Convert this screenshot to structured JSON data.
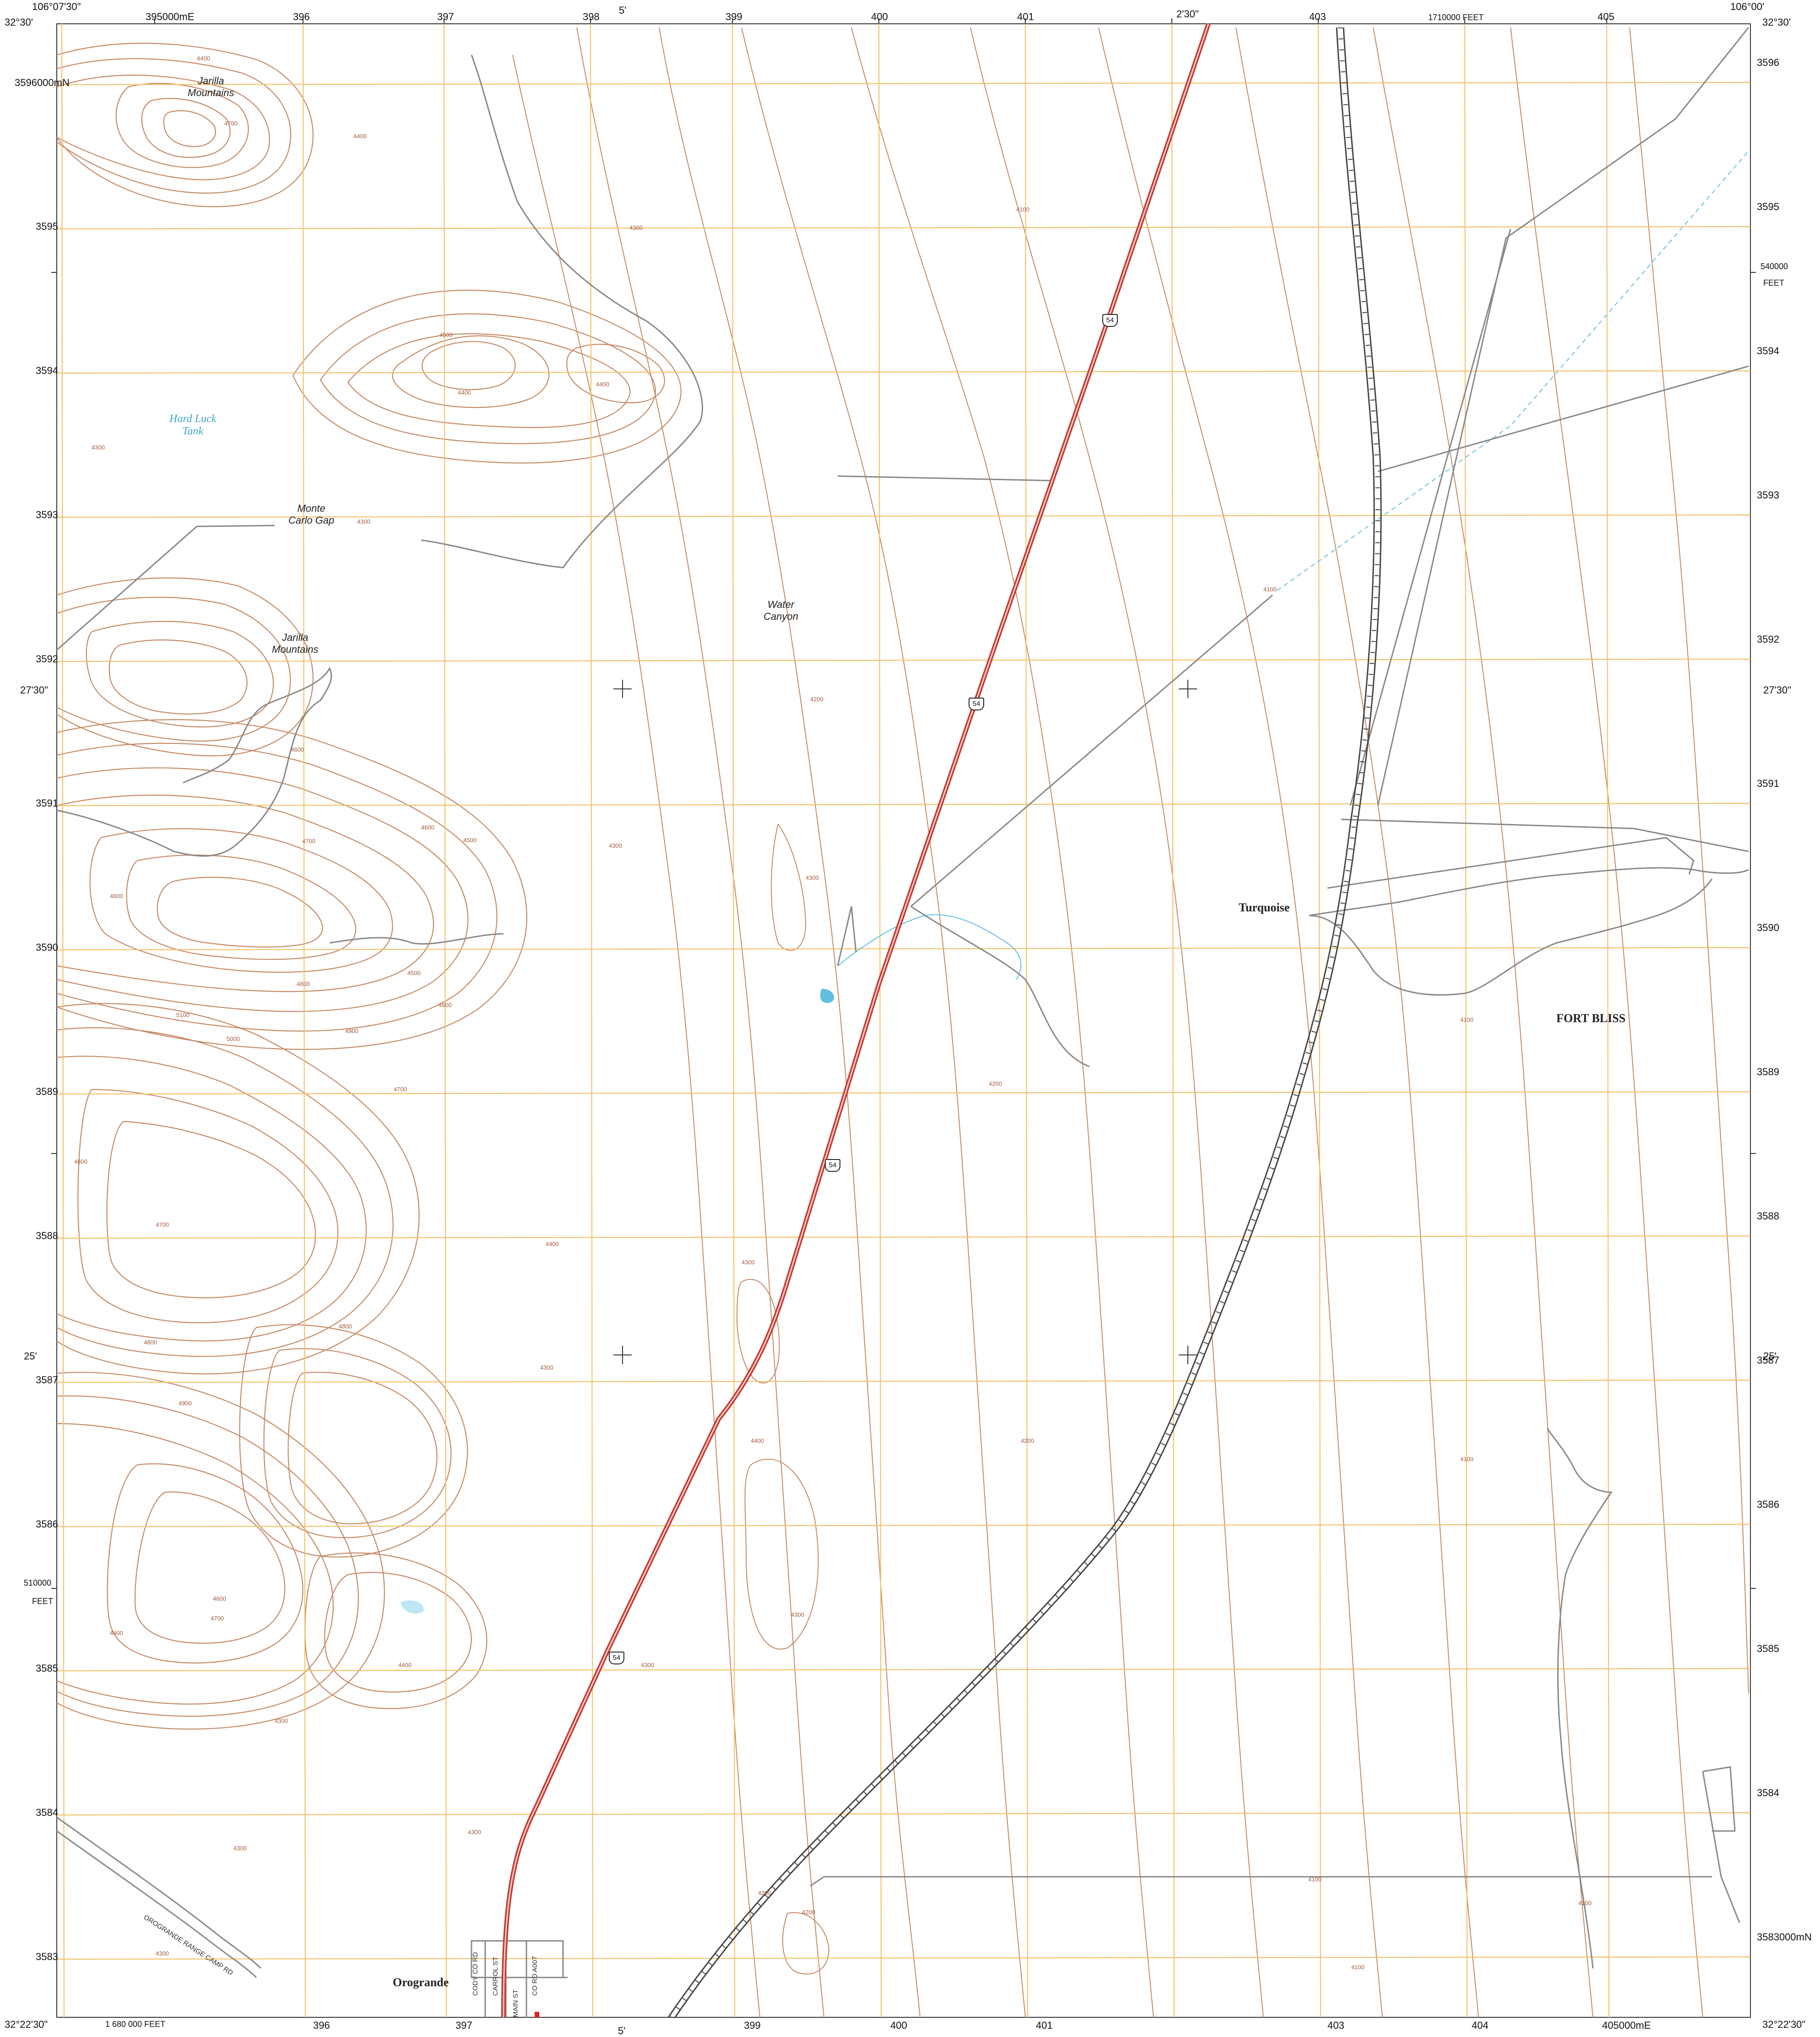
{
  "map": {
    "colors": {
      "background": "#ffffff",
      "contour": "#c58a64",
      "contour_index": "#b4704a",
      "grid": "#f3c36a",
      "highway": "#c43a32",
      "railroad": "#555555",
      "road": "#888888",
      "water": "#5fc0e0"
    },
    "corners": {
      "top_left_lat": "32°30'",
      "top_left_lon": "106°07'30\"",
      "top_right_lat": "32°30'",
      "top_right_lon": "106°00'",
      "bottom_left_lat": "32°22'30\"",
      "bottom_right_lat": "32°22'30\""
    },
    "edge_ticks": {
      "top_minutes": [
        "5'",
        "2'30\""
      ],
      "left_minutes": [
        "27'30\"",
        "25'"
      ],
      "right_minutes": [
        "27'30\"",
        "25'"
      ],
      "bottom_minutes": [
        "5'"
      ]
    },
    "grid_easting": {
      "top": [
        "395000mE",
        "396",
        "397",
        "398",
        "399",
        "400",
        "401",
        "403",
        "405"
      ],
      "bottom": [
        "396",
        "397",
        "399",
        "400",
        "401",
        "403",
        "404",
        "405000mE"
      ]
    },
    "grid_northing": {
      "left": [
        "3596000mN",
        "3595",
        "3594",
        "3593",
        "3592",
        "3591",
        "3590",
        "3589",
        "3588",
        "3587",
        "3586",
        "3585",
        "3584",
        "3583"
      ],
      "right": [
        "3596",
        "3595",
        "3594",
        "3593",
        "3592",
        "3591",
        "3590",
        "3589",
        "3588",
        "3587",
        "3586",
        "3585",
        "3584",
        "3583000mN"
      ]
    },
    "state_plane": {
      "top": "1710000 FEET",
      "bottom": "1 680 000 FEET",
      "left_value": "510000",
      "left_unit": "FEET",
      "right_value": "540000",
      "right_unit": "FEET"
    },
    "places": {
      "turquoise": "Turquoise",
      "fort_bliss": "FORT BLISS",
      "orogrande": "Orogrande"
    },
    "features": {
      "jarilla_n": [
        "Jarilla",
        "Mountains"
      ],
      "jarilla_s": [
        "Jarilla",
        "Mountains"
      ],
      "monte_carlo": [
        "Monte",
        "Carlo Gap"
      ],
      "water_canyon": [
        "Water",
        "Canyon"
      ],
      "hard_luck": [
        "Hard Luck",
        "Tank"
      ]
    },
    "roads": {
      "orogrande_range": "OROGRANDE RANGE CAMP RD",
      "streets": [
        "CODY CO RD",
        "CARROL ST",
        "MAIN ST",
        "CO RD A007"
      ]
    },
    "route_shield": "54",
    "contour_labels": {
      "v4100": "4100",
      "v4200": "4200",
      "v4300": "4300",
      "v4400": "4400",
      "v4500": "4500",
      "v4600": "4600",
      "v4700": "4700",
      "v4800": "4800",
      "v4900": "4900",
      "v5000": "5000",
      "v5100": "5100"
    }
  }
}
